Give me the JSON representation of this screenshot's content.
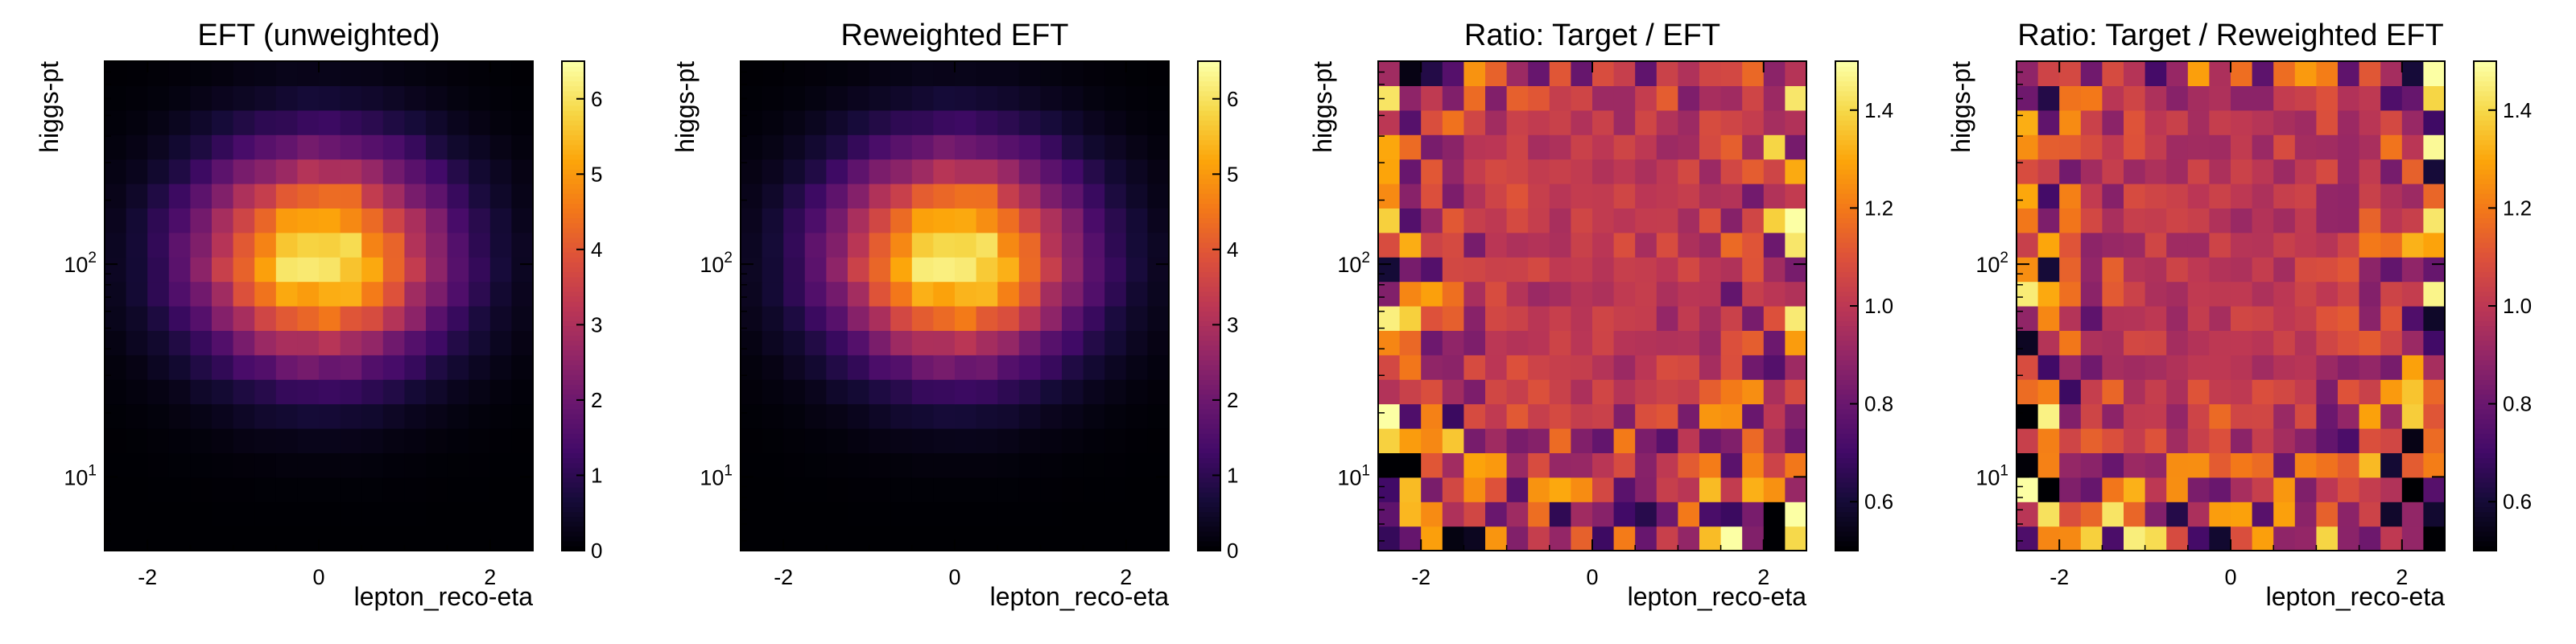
{
  "chart_data": [
    {
      "type": "heatmap",
      "title": "EFT (unweighted)",
      "xlabel": "lepton_reco-eta",
      "ylabel": "higgs-pt",
      "x_range": [
        -2.5,
        2.5
      ],
      "x_ticks": [
        "-2",
        "0",
        "2"
      ],
      "y_scale": "log",
      "y_range": [
        4.5,
        900
      ],
      "y_ticks": [
        {
          "mantissa": "10",
          "exp": "1"
        },
        {
          "mantissa": "10",
          "exp": "2"
        }
      ],
      "colorbar_range": [
        0,
        6.5
      ],
      "colorbar_ticks": [
        "0",
        "1",
        "2",
        "3",
        "4",
        "5",
        "6"
      ],
      "colormap": "inferno",
      "grid": "20x20",
      "model": "peak",
      "peak": 6.2
    },
    {
      "type": "heatmap",
      "title": "Reweighted EFT",
      "xlabel": "lepton_reco-eta",
      "ylabel": "higgs-pt",
      "x_range": [
        -2.5,
        2.5
      ],
      "x_ticks": [
        "-2",
        "0",
        "2"
      ],
      "y_scale": "log",
      "y_range": [
        4.5,
        900
      ],
      "y_ticks": [
        {
          "mantissa": "10",
          "exp": "1"
        },
        {
          "mantissa": "10",
          "exp": "2"
        }
      ],
      "colorbar_range": [
        0,
        6.5
      ],
      "colorbar_ticks": [
        "0",
        "1",
        "2",
        "3",
        "4",
        "5",
        "6"
      ],
      "colormap": "inferno",
      "grid": "20x20",
      "model": "peak",
      "peak": 6.3
    },
    {
      "type": "heatmap",
      "title": "Ratio: Target / EFT",
      "xlabel": "lepton_reco-eta",
      "ylabel": "higgs-pt",
      "x_range": [
        -2.5,
        2.5
      ],
      "x_ticks": [
        "-2",
        "0",
        "2"
      ],
      "y_scale": "log",
      "y_range": [
        4.5,
        900
      ],
      "y_ticks": [
        {
          "mantissa": "10",
          "exp": "1"
        },
        {
          "mantissa": "10",
          "exp": "2"
        }
      ],
      "colorbar_range": [
        0.5,
        1.5
      ],
      "colorbar_ticks": [
        "0.6",
        "0.8",
        "1.0",
        "1.2",
        "1.4"
      ],
      "colormap": "inferno",
      "grid": "20x20",
      "model": "ratio",
      "seed": 11
    },
    {
      "type": "heatmap",
      "title": "Ratio: Target / Reweighted EFT",
      "xlabel": "lepton_reco-eta",
      "ylabel": "higgs-pt",
      "x_range": [
        -2.5,
        2.5
      ],
      "x_ticks": [
        "-2",
        "0",
        "2"
      ],
      "y_scale": "log",
      "y_range": [
        4.5,
        900
      ],
      "y_ticks": [
        {
          "mantissa": "10",
          "exp": "1"
        },
        {
          "mantissa": "10",
          "exp": "2"
        }
      ],
      "colorbar_range": [
        0.5,
        1.5
      ],
      "colorbar_ticks": [
        "0.6",
        "0.8",
        "1.0",
        "1.2",
        "1.4"
      ],
      "colormap": "inferno",
      "grid": "20x20",
      "model": "ratio",
      "seed": 29
    }
  ]
}
